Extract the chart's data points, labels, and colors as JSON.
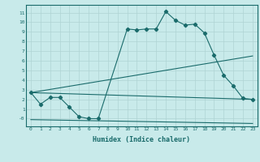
{
  "xlabel": "Humidex (Indice chaleur)",
  "background_color": "#c8eaea",
  "grid_color": "#afd4d4",
  "line_color": "#1a6b6b",
  "xlim": [
    -0.5,
    23.5
  ],
  "ylim": [
    -0.8,
    11.8
  ],
  "xtick_vals": [
    0,
    1,
    2,
    3,
    4,
    5,
    6,
    7,
    8,
    9,
    10,
    11,
    12,
    13,
    14,
    15,
    16,
    17,
    18,
    19,
    20,
    21,
    22,
    23
  ],
  "xtick_labels": [
    "0",
    "1",
    "2",
    "3",
    "4",
    "5",
    "6",
    "7",
    "8",
    "9",
    "10",
    "11",
    "12",
    "13",
    "14",
    "15",
    "16",
    "17",
    "18",
    "19",
    "20",
    "21",
    "22",
    "23"
  ],
  "ytick_vals": [
    0,
    1,
    2,
    3,
    4,
    5,
    6,
    7,
    8,
    9,
    10,
    11
  ],
  "ytick_labels": [
    "-0",
    "1",
    "2",
    "3",
    "4",
    "5",
    "6",
    "7",
    "8",
    "9",
    "10",
    "11"
  ],
  "line1_x": [
    0,
    1,
    2,
    3,
    4,
    5,
    6,
    7,
    10,
    11,
    12,
    13,
    14,
    15,
    16,
    17,
    18,
    19,
    20,
    21,
    22,
    23
  ],
  "line1_y": [
    2.7,
    1.5,
    2.2,
    2.2,
    1.2,
    0.2,
    0.0,
    0.0,
    9.3,
    9.2,
    9.3,
    9.3,
    11.1,
    10.2,
    9.7,
    9.8,
    8.9,
    6.6,
    4.5,
    3.4,
    2.1,
    2.0
  ],
  "line2_x": [
    0,
    23
  ],
  "line2_y": [
    2.7,
    6.5
  ],
  "line3_x": [
    0,
    23
  ],
  "line3_y": [
    2.7,
    2.0
  ],
  "line4_x": [
    0,
    23
  ],
  "line4_y": [
    -0.1,
    -0.5
  ]
}
